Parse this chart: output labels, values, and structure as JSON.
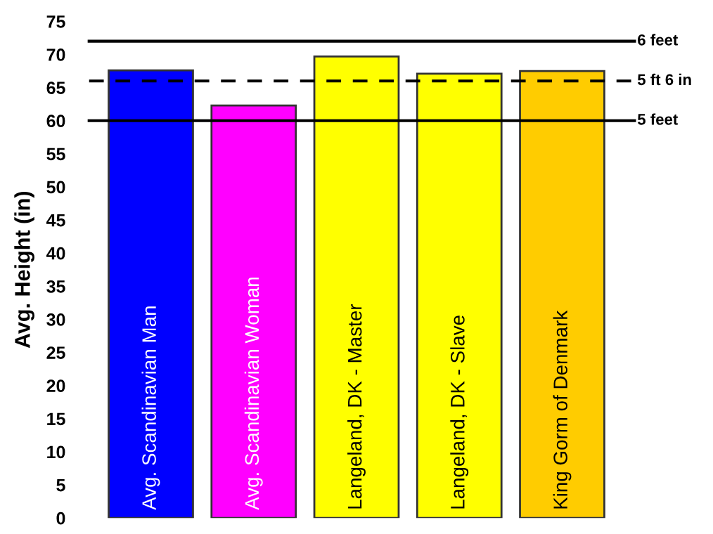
{
  "chart_data": {
    "type": "bar",
    "ylabel": "Avg. Height (in)",
    "categories": [
      "Avg. Scandinavian Man",
      "Avg. Scandinavian Woman",
      "Langeland, DK - Master",
      "Langeland, DK - Slave",
      "King Gorm of Denmark"
    ],
    "values": [
      67.6,
      62.3,
      69.7,
      67.1,
      67.5
    ],
    "colors": [
      "#0000ff",
      "#ff00ff",
      "#ffff00",
      "#ffff00",
      "#ffcc00"
    ],
    "ylim": [
      0,
      75
    ],
    "yticks": [
      0,
      5,
      10,
      15,
      20,
      25,
      30,
      35,
      40,
      45,
      50,
      55,
      60,
      65,
      70,
      75
    ],
    "ref_lines": [
      {
        "axis": "y",
        "value": 72,
        "label": "6 feet",
        "line_style": "solid"
      },
      {
        "axis": "y",
        "value": 66,
        "label": "5 ft 6 in",
        "line_style": "dashed"
      },
      {
        "axis": "y",
        "value": 60,
        "label": "5 feet",
        "line_style": "solid"
      }
    ],
    "grid": false,
    "legend": false
  }
}
